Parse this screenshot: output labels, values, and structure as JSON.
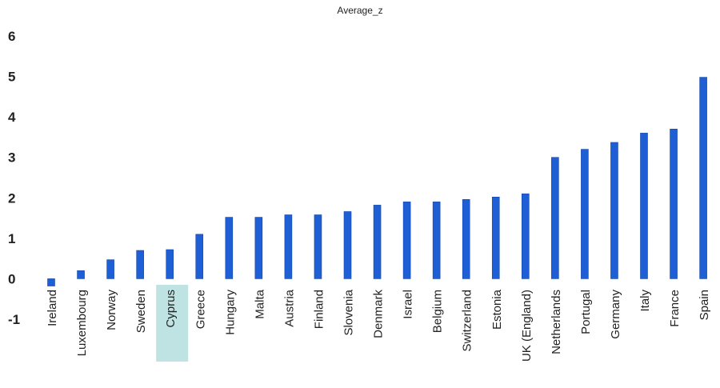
{
  "chart_data": {
    "type": "bar",
    "title": "Average_z",
    "xlabel": "",
    "ylabel": "",
    "ylim": [
      -1,
      6
    ],
    "yticks": [
      -1,
      0,
      1,
      2,
      3,
      4,
      5,
      6
    ],
    "grid": false,
    "legend": "none",
    "bar_color": "#1f5fd6",
    "highlight_color": "#bfe3e3",
    "highlighted_category": "Cyprus",
    "categories": [
      "Ireland",
      "Luxembourg",
      "Norway",
      "Sweden",
      "Cyprus",
      "Greece",
      "Hungary",
      "Malta",
      "Austria",
      "Finland",
      "Slovenia",
      "Denmark",
      "Israel",
      "Belgium",
      "Switzerland",
      "Estonia",
      "UK (England)",
      "Netherlands",
      "Portugal",
      "Germany",
      "Italy",
      "France",
      "Spain"
    ],
    "values": [
      -0.18,
      0.2,
      0.47,
      0.7,
      0.72,
      1.1,
      1.52,
      1.52,
      1.58,
      1.58,
      1.66,
      1.82,
      1.9,
      1.9,
      1.96,
      2.02,
      2.1,
      3.0,
      3.2,
      3.37,
      3.6,
      3.7,
      4.98
    ]
  }
}
